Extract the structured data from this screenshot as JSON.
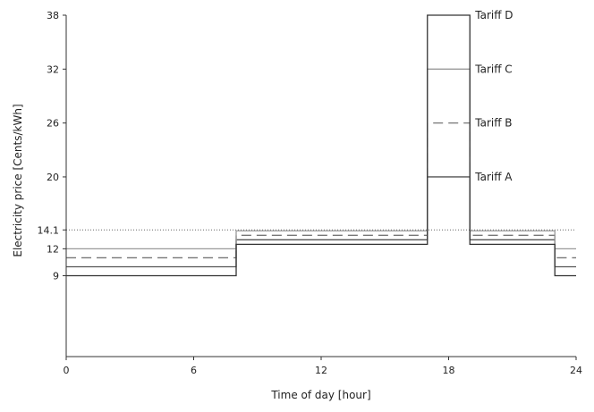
{
  "chart_data": {
    "type": "line",
    "title": "",
    "xlabel": "Time of day [hour]",
    "ylabel": "Electricity price [Cents/kWh]",
    "xlim": [
      0,
      24
    ],
    "ylim": [
      0,
      38
    ],
    "x_ticks": [
      0,
      6,
      12,
      18,
      24
    ],
    "x_tick_labels": [
      "0",
      "6",
      "12",
      "18",
      "24"
    ],
    "y_ticks": [
      9,
      12,
      14.1,
      20,
      26,
      32,
      38
    ],
    "y_tick_labels": [
      "9",
      "12",
      "14.1",
      "20",
      "26",
      "32",
      "38"
    ],
    "grid": false,
    "reference_line": {
      "y": 14.1,
      "style": "dotted"
    },
    "series": [
      {
        "name": "Tariff A",
        "style": "solid",
        "color": "#555555",
        "points": [
          [
            0,
            10
          ],
          [
            8,
            10
          ],
          [
            8,
            13
          ],
          [
            17,
            13
          ],
          [
            17,
            20
          ],
          [
            19,
            20
          ],
          [
            19,
            13
          ],
          [
            23,
            13
          ],
          [
            23,
            10
          ],
          [
            24,
            10
          ]
        ]
      },
      {
        "name": "Tariff B",
        "style": "dashed",
        "color": "#777777",
        "points": [
          [
            0,
            11
          ],
          [
            8,
            11
          ],
          [
            8,
            13.5
          ],
          [
            17,
            13.5
          ],
          [
            17,
            26
          ],
          [
            19,
            26
          ],
          [
            19,
            13.5
          ],
          [
            23,
            13.5
          ],
          [
            23,
            11
          ],
          [
            24,
            11
          ]
        ]
      },
      {
        "name": "Tariff C",
        "style": "solid",
        "color": "#999999",
        "points": [
          [
            0,
            12
          ],
          [
            8,
            12
          ],
          [
            8,
            14
          ],
          [
            17,
            14
          ],
          [
            17,
            32
          ],
          [
            19,
            32
          ],
          [
            19,
            14
          ],
          [
            23,
            14
          ],
          [
            23,
            12
          ],
          [
            24,
            12
          ]
        ]
      },
      {
        "name": "Tariff D",
        "style": "solid",
        "color": "#333333",
        "points": [
          [
            0,
            9
          ],
          [
            8,
            9
          ],
          [
            8,
            12.5
          ],
          [
            17,
            12.5
          ],
          [
            17,
            38
          ],
          [
            19,
            38
          ],
          [
            19,
            12.5
          ],
          [
            23,
            12.5
          ],
          [
            23,
            9
          ],
          [
            24,
            9
          ]
        ]
      }
    ]
  }
}
